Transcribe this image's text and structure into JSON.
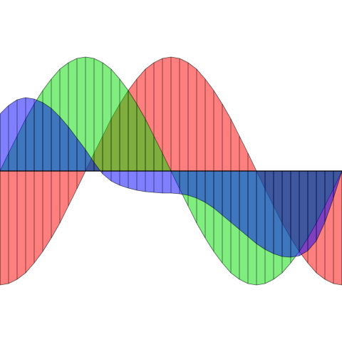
{
  "chart_data": {
    "type": "area",
    "x": [
      0,
      1,
      2,
      3,
      4,
      5,
      6,
      7,
      8,
      9,
      10,
      11,
      12,
      13,
      14,
      15,
      16,
      17,
      18,
      19,
      20,
      21,
      22,
      23,
      24,
      25,
      26,
      27,
      28,
      29,
      30,
      31,
      32,
      33,
      34,
      35,
      36,
      37,
      38,
      39,
      40
    ],
    "xlim": [
      0,
      40
    ],
    "ylim": [
      -240,
      240
    ],
    "series": [
      {
        "color": "#ff0000",
        "values": [
          -160,
          -158,
          -152,
          -143,
          -129,
          -113,
          -94,
          -73,
          -49,
          -25,
          0,
          25,
          49,
          73,
          94,
          113,
          129,
          143,
          152,
          158,
          160,
          158,
          152,
          143,
          129,
          113,
          94,
          73,
          49,
          25,
          0,
          -25,
          -49,
          -73,
          -94,
          -113,
          -129,
          -143,
          -152,
          -158,
          -160
        ]
      },
      {
        "color": "#00dd00",
        "values": [
          0,
          25,
          49,
          73,
          94,
          113,
          129,
          143,
          152,
          158,
          160,
          158,
          152,
          143,
          129,
          113,
          94,
          73,
          49,
          25,
          0,
          -25,
          -49,
          -73,
          -94,
          -113,
          -129,
          -143,
          -152,
          -158,
          -160,
          -158,
          -152,
          -143,
          -129,
          -113,
          -94,
          -73,
          -49,
          -25,
          0
        ]
      },
      {
        "color": "#0000ff",
        "values": [
          80,
          92,
          100,
          103,
          101,
          96,
          88,
          76,
          62,
          46,
          30,
          12,
          -4,
          -14,
          -20,
          -24,
          -27,
          -29,
          -30,
          -31,
          -31,
          -32,
          -34,
          -38,
          -44,
          -52,
          -62,
          -72,
          -82,
          -92,
          -102,
          -110,
          -116,
          -120,
          -121,
          -119,
          -112,
          -98,
          -72,
          -38,
          0
        ]
      }
    ]
  }
}
